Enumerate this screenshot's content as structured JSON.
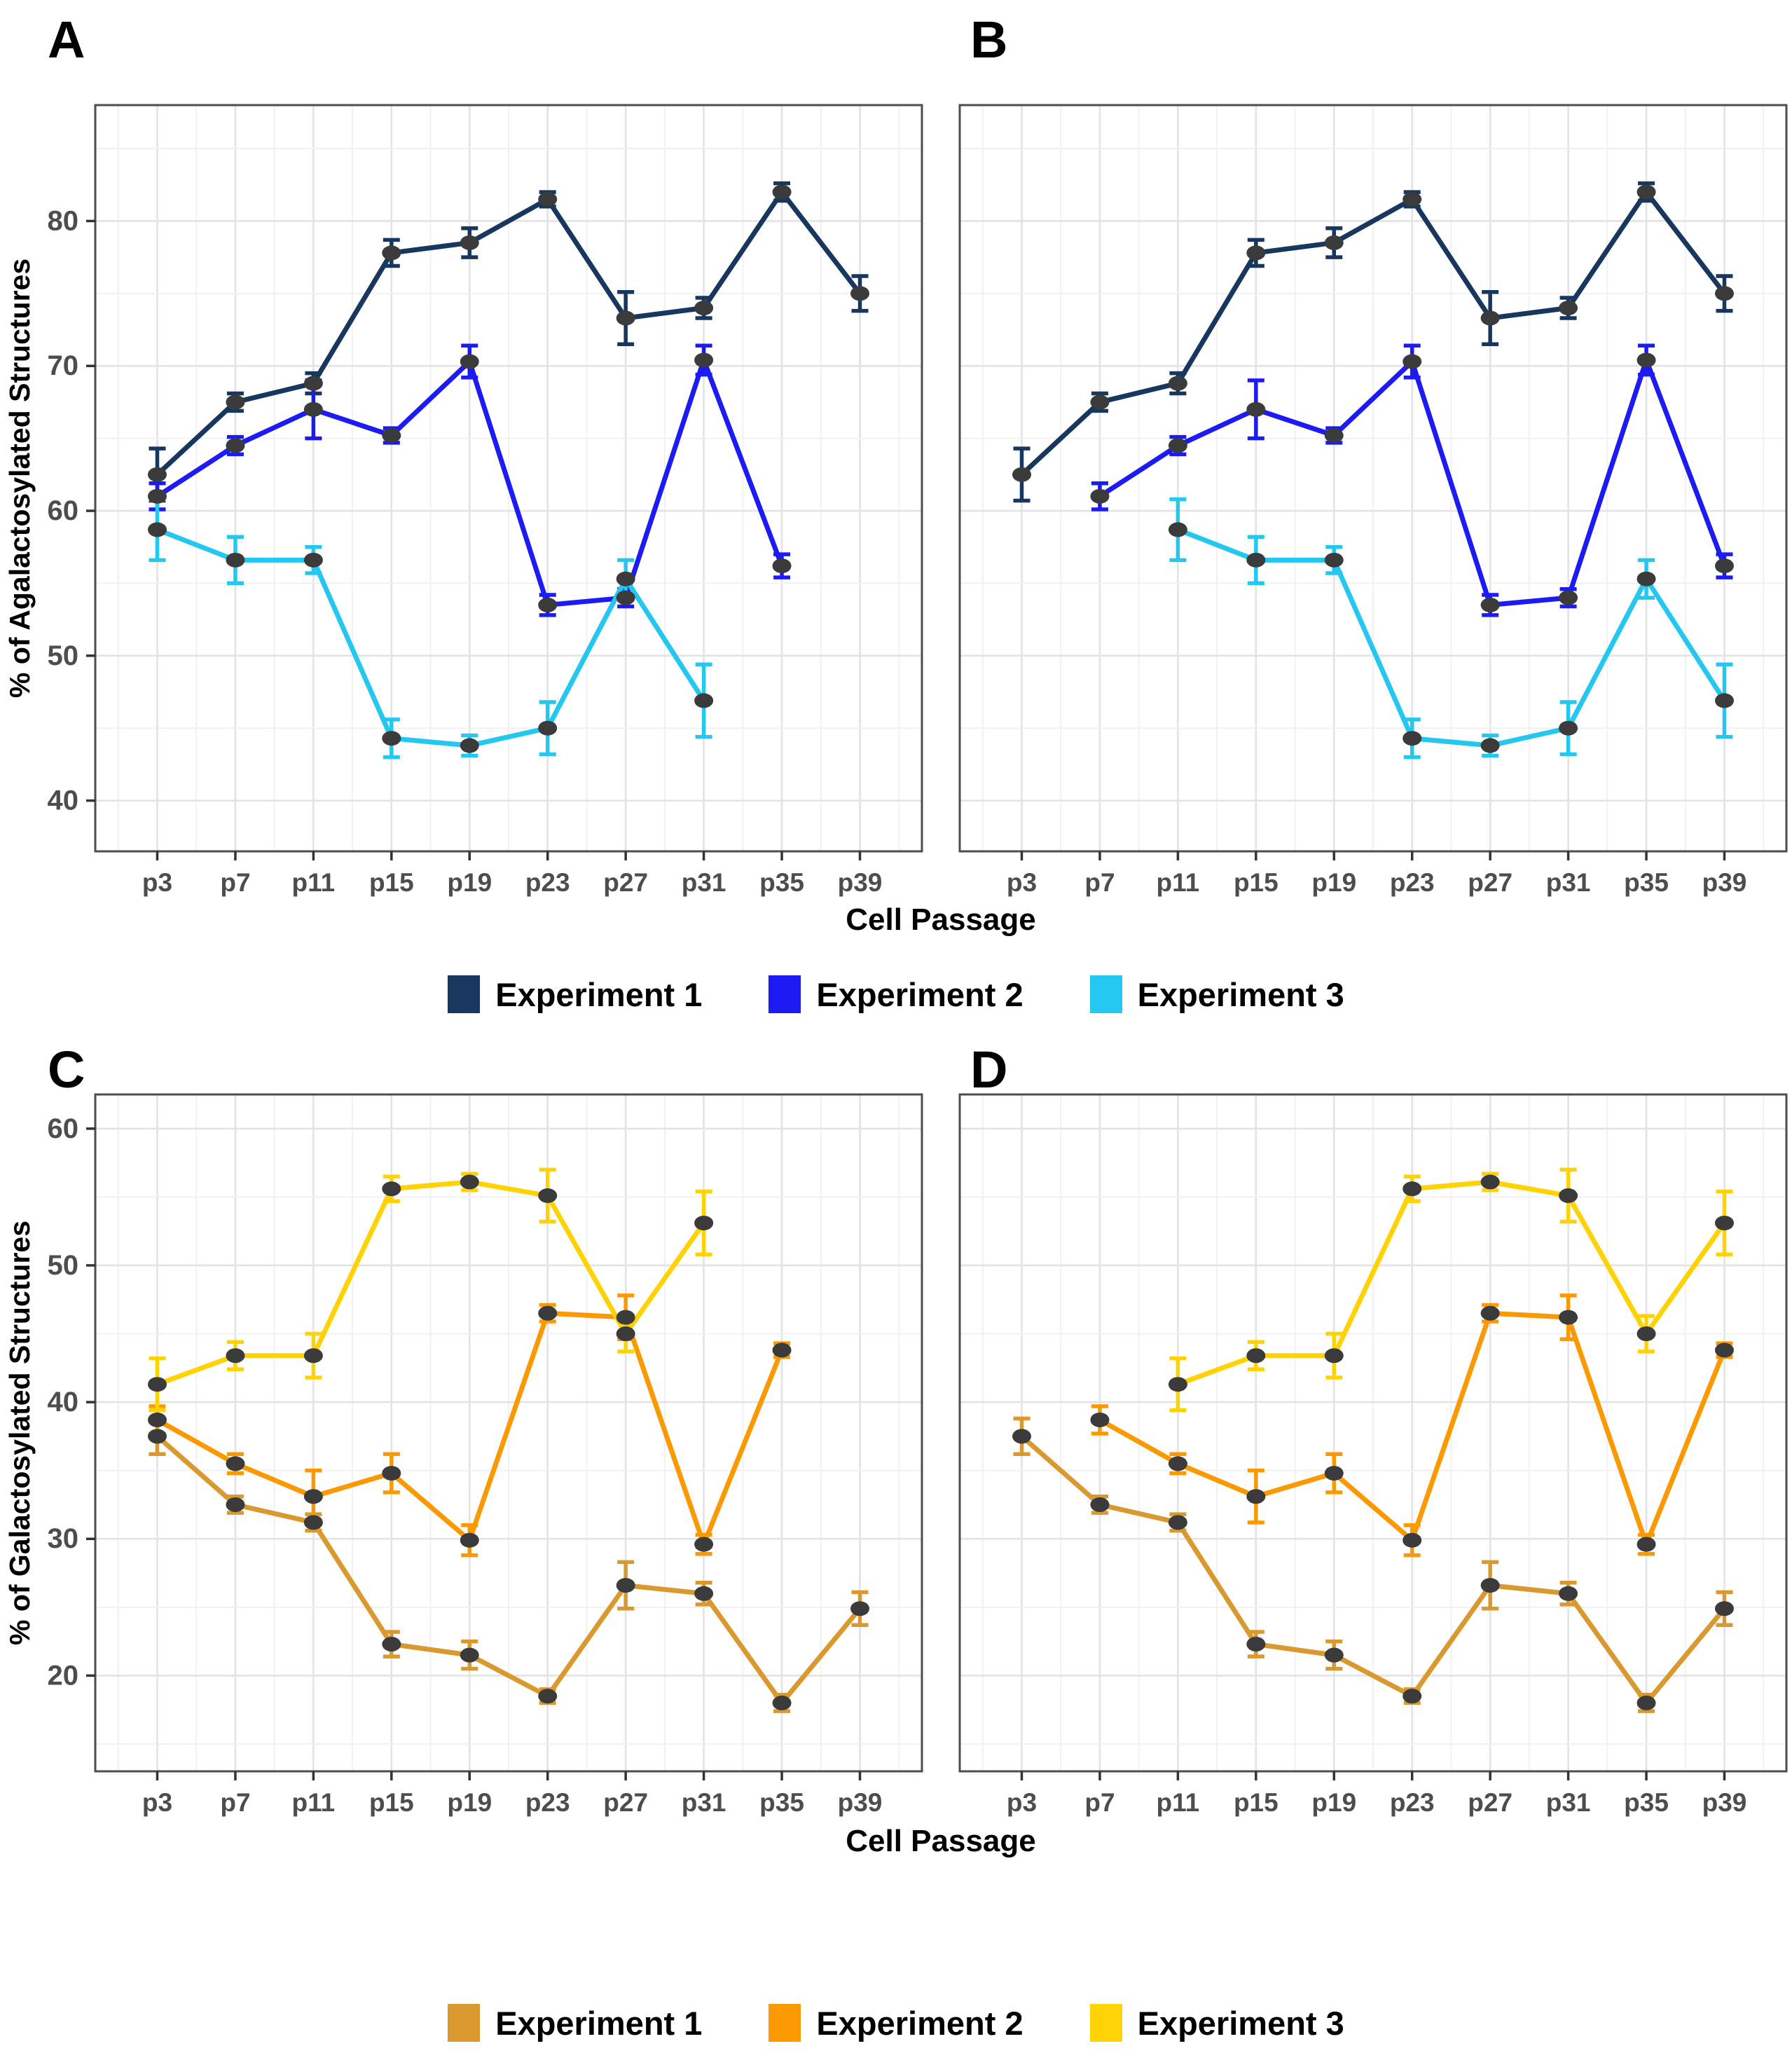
{
  "figure_title": "",
  "axis": {
    "x_title": "Cell Passage",
    "y_title_top": "% of Agalactosylated Structures",
    "y_title_bottom": "% of Galactosylated Structures"
  },
  "chart_data": [
    {
      "type": "line",
      "panel": "A",
      "xlabel": "Cell Passage",
      "ylabel": "% of Agalactosylated Structures",
      "categories": [
        "p3",
        "p7",
        "p11",
        "p15",
        "p19",
        "p23",
        "p27",
        "p31",
        "p35",
        "p39"
      ],
      "yticks": [
        40,
        50,
        60,
        70,
        80
      ],
      "ylim": [
        36.5,
        88
      ],
      "grid": true,
      "show_y_axis_labels": true,
      "series": [
        {
          "name": "Experiment 1",
          "color": "#17375E",
          "start_index": 0,
          "values": [
            62.5,
            67.5,
            68.8,
            77.8,
            78.5,
            81.5,
            73.3,
            74.0,
            82.0,
            75.0
          ],
          "errors": [
            1.8,
            0.6,
            0.7,
            0.9,
            1.0,
            0.5,
            1.8,
            0.7,
            0.6,
            1.2
          ]
        },
        {
          "name": "Experiment 2",
          "color": "#1B1BF2",
          "start_index": 0,
          "values": [
            61.0,
            64.5,
            67.0,
            65.2,
            70.3,
            53.5,
            54.0,
            70.4,
            56.2
          ],
          "errors": [
            0.9,
            0.6,
            2.0,
            0.5,
            1.1,
            0.7,
            0.6,
            1.0,
            0.8
          ]
        },
        {
          "name": "Experiment 3",
          "color": "#24C7F0",
          "start_index": 0,
          "values": [
            58.7,
            56.6,
            56.6,
            44.3,
            43.8,
            45.0,
            55.3,
            46.9
          ],
          "errors": [
            2.1,
            1.6,
            0.9,
            1.3,
            0.7,
            1.8,
            1.3,
            2.5
          ]
        }
      ]
    },
    {
      "type": "line",
      "panel": "B",
      "xlabel": "Cell Passage",
      "ylabel": "% of Agalactosylated Structures",
      "categories": [
        "p3",
        "p7",
        "p11",
        "p15",
        "p19",
        "p23",
        "p27",
        "p31",
        "p35",
        "p39"
      ],
      "yticks": [
        40,
        50,
        60,
        70,
        80
      ],
      "ylim": [
        36.5,
        88
      ],
      "grid": true,
      "show_y_axis_labels": false,
      "series": [
        {
          "name": "Experiment 1",
          "color": "#17375E",
          "start_index": 0,
          "values": [
            62.5,
            67.5,
            68.8,
            77.8,
            78.5,
            81.5,
            73.3,
            74.0,
            82.0,
            75.0
          ],
          "errors": [
            1.8,
            0.6,
            0.7,
            0.9,
            1.0,
            0.5,
            1.8,
            0.7,
            0.6,
            1.2
          ]
        },
        {
          "name": "Experiment 2",
          "color": "#1B1BF2",
          "start_index": 1,
          "values": [
            61.0,
            64.5,
            67.0,
            65.2,
            70.3,
            53.5,
            54.0,
            70.4,
            56.2
          ],
          "errors": [
            0.9,
            0.6,
            2.0,
            0.5,
            1.1,
            0.7,
            0.6,
            1.0,
            0.8
          ]
        },
        {
          "name": "Experiment 3",
          "color": "#24C7F0",
          "start_index": 2,
          "values": [
            58.7,
            56.6,
            56.6,
            44.3,
            43.8,
            45.0,
            55.3,
            46.9
          ],
          "errors": [
            2.1,
            1.6,
            0.9,
            1.3,
            0.7,
            1.8,
            1.3,
            2.5
          ]
        }
      ]
    },
    {
      "type": "line",
      "panel": "C",
      "xlabel": "Cell Passage",
      "ylabel": "% of Galactosylated Structures",
      "categories": [
        "p3",
        "p7",
        "p11",
        "p15",
        "p19",
        "p23",
        "p27",
        "p31",
        "p35",
        "p39"
      ],
      "yticks": [
        20,
        30,
        40,
        50,
        60
      ],
      "ylim": [
        13,
        62.5
      ],
      "grid": true,
      "show_y_axis_labels": true,
      "series": [
        {
          "name": "Experiment 1",
          "color": "#D9992E",
          "start_index": 0,
          "values": [
            37.5,
            32.5,
            31.2,
            22.3,
            21.5,
            18.5,
            26.6,
            26.0,
            18.0,
            24.9
          ],
          "errors": [
            1.3,
            0.6,
            0.6,
            0.9,
            1.0,
            0.5,
            1.7,
            0.8,
            0.6,
            1.2
          ]
        },
        {
          "name": "Experiment 2",
          "color": "#FB9903",
          "start_index": 0,
          "values": [
            38.7,
            35.5,
            33.1,
            34.8,
            29.9,
            46.5,
            46.2,
            29.6,
            43.8
          ],
          "errors": [
            1.0,
            0.7,
            1.9,
            1.4,
            1.1,
            0.6,
            1.6,
            0.7,
            0.5
          ]
        },
        {
          "name": "Experiment 3",
          "color": "#FFD205",
          "start_index": 0,
          "values": [
            41.3,
            43.4,
            43.4,
            55.6,
            56.1,
            55.1,
            45.0,
            53.1
          ],
          "errors": [
            1.9,
            1.0,
            1.6,
            0.9,
            0.6,
            1.9,
            1.3,
            2.3
          ]
        }
      ]
    },
    {
      "type": "line",
      "panel": "D",
      "xlabel": "Cell Passage",
      "ylabel": "% of Galactosylated Structures",
      "categories": [
        "p3",
        "p7",
        "p11",
        "p15",
        "p19",
        "p23",
        "p27",
        "p31",
        "p35",
        "p39"
      ],
      "yticks": [
        20,
        30,
        40,
        50,
        60
      ],
      "ylim": [
        13,
        62.5
      ],
      "grid": true,
      "show_y_axis_labels": false,
      "series": [
        {
          "name": "Experiment 1",
          "color": "#D9992E",
          "start_index": 0,
          "values": [
            37.5,
            32.5,
            31.2,
            22.3,
            21.5,
            18.5,
            26.6,
            26.0,
            18.0,
            24.9
          ],
          "errors": [
            1.3,
            0.6,
            0.6,
            0.9,
            1.0,
            0.5,
            1.7,
            0.8,
            0.6,
            1.2
          ]
        },
        {
          "name": "Experiment 2",
          "color": "#FB9903",
          "start_index": 1,
          "values": [
            38.7,
            35.5,
            33.1,
            34.8,
            29.9,
            46.5,
            46.2,
            29.6,
            43.8
          ],
          "errors": [
            1.0,
            0.7,
            1.9,
            1.4,
            1.1,
            0.6,
            1.6,
            0.7,
            0.5
          ]
        },
        {
          "name": "Experiment 3",
          "color": "#FFD205",
          "start_index": 2,
          "values": [
            41.3,
            43.4,
            43.4,
            55.6,
            56.1,
            55.1,
            45.0,
            53.1
          ],
          "errors": [
            1.9,
            1.0,
            1.6,
            0.9,
            0.6,
            1.9,
            1.3,
            2.3
          ]
        }
      ]
    }
  ],
  "legends": [
    {
      "items": [
        {
          "label": "Experiment 1",
          "color": "#17375E"
        },
        {
          "label": "Experiment 2",
          "color": "#1B1BF2"
        },
        {
          "label": "Experiment 3",
          "color": "#24C7F0"
        }
      ]
    },
    {
      "items": [
        {
          "label": "Experiment 1",
          "color": "#D9992E"
        },
        {
          "label": "Experiment 2",
          "color": "#FB9903"
        },
        {
          "label": "Experiment 3",
          "color": "#FFD205"
        }
      ]
    }
  ]
}
